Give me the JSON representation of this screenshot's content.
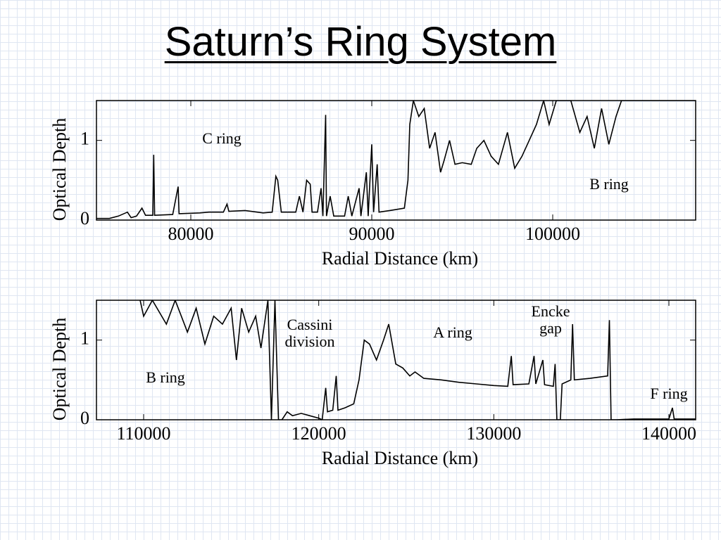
{
  "title": "Saturn’s Ring System",
  "chart_data": [
    {
      "type": "line",
      "xlabel": "Radial Distance (km)",
      "ylabel": "Optical Depth",
      "xlim": [
        74786,
        107899
      ],
      "ylim": [
        0,
        1.5
      ],
      "xticks": [
        80000,
        90000,
        100000
      ],
      "yticks": [
        0,
        1
      ],
      "color": "#000000",
      "annotations": [
        "C ring",
        "B ring"
      ],
      "x": [
        74800,
        75500,
        76000,
        76500,
        76700,
        77000,
        77300,
        77500,
        77900,
        77950,
        78000,
        79000,
        79300,
        79350,
        80500,
        81000,
        81800,
        82000,
        82100,
        83000,
        84000,
        84500,
        84700,
        84800,
        85000,
        85800,
        86000,
        86200,
        86400,
        86600,
        86700,
        87000,
        87200,
        87300,
        87450,
        87500,
        87700,
        87900,
        88500,
        88700,
        88900,
        89300,
        89400,
        89700,
        89800,
        90000,
        90100,
        90300,
        90400,
        91000,
        91800,
        92000,
        92100,
        92300,
        92600,
        92900,
        93200,
        93500,
        93800,
        94000,
        94300,
        94600,
        95000,
        95500,
        95800,
        96200,
        96600,
        97000,
        97500,
        97900,
        98300,
        98700,
        99100,
        99500,
        99800,
        100200,
        101000,
        101500,
        101900,
        102300,
        102700,
        103100,
        103500,
        103800,
        104500,
        107899
      ],
      "values": [
        0.02,
        0.02,
        0.05,
        0.1,
        0.03,
        0.05,
        0.15,
        0.06,
        0.06,
        0.82,
        0.06,
        0.07,
        0.42,
        0.08,
        0.09,
        0.1,
        0.1,
        0.2,
        0.11,
        0.12,
        0.09,
        0.1,
        0.55,
        0.5,
        0.1,
        0.1,
        0.3,
        0.1,
        0.5,
        0.45,
        0.1,
        0.1,
        0.4,
        0.05,
        1.32,
        0.05,
        0.3,
        0.05,
        0.05,
        0.3,
        0.05,
        0.4,
        0.05,
        0.6,
        0.05,
        0.95,
        0.1,
        0.7,
        0.1,
        0.12,
        0.15,
        0.5,
        1.2,
        1.5,
        1.3,
        1.4,
        0.9,
        1.1,
        0.6,
        0.75,
        1.0,
        0.7,
        0.72,
        0.7,
        0.9,
        1.0,
        0.8,
        0.7,
        1.1,
        0.65,
        0.8,
        1.0,
        1.2,
        1.5,
        1.2,
        1.5,
        1.5,
        1.1,
        1.3,
        0.9,
        1.4,
        0.95,
        1.3,
        1.5,
        1.5,
        1.5
      ]
    },
    {
      "type": "line",
      "xlabel": "Radial Distance (km)",
      "ylabel": "Optical Depth",
      "xlim": [
        107306,
        141528
      ],
      "ylim": [
        0,
        1.5
      ],
      "xticks": [
        110000,
        120000,
        130000,
        140000
      ],
      "yticks": [
        0,
        1
      ],
      "color": "#000000",
      "annotations": [
        "B ring",
        "Cassini division",
        "A ring",
        "Encke gap",
        "F ring"
      ],
      "x": [
        109800,
        110000,
        110500,
        111300,
        111800,
        112500,
        113000,
        113500,
        114000,
        114500,
        115000,
        115300,
        115600,
        116000,
        116400,
        116700,
        117100,
        117300,
        117500,
        117700,
        117900,
        118200,
        118500,
        119000,
        119500,
        120000,
        120200,
        120400,
        120500,
        120800,
        121000,
        121100,
        121500,
        122000,
        122300,
        122600,
        122900,
        123300,
        123700,
        124000,
        124400,
        124800,
        125200,
        125500,
        126000,
        127000,
        128000,
        129000,
        130000,
        130800,
        131000,
        131100,
        132000,
        132300,
        132400,
        132800,
        132900,
        133400,
        133500,
        133600,
        133800,
        133900,
        134400,
        134500,
        134600,
        135500,
        136500,
        136600,
        136700,
        137000,
        138000,
        140000,
        140200,
        140300,
        141528
      ],
      "values": [
        1.5,
        1.3,
        1.5,
        1.2,
        1.5,
        1.1,
        1.4,
        0.95,
        1.3,
        1.2,
        1.4,
        0.75,
        1.4,
        1.1,
        1.3,
        0.9,
        1.5,
        0.0,
        1.5,
        0.0,
        0.0,
        0.1,
        0.05,
        0.08,
        0.05,
        0.02,
        0.0,
        0.4,
        0.1,
        0.12,
        0.55,
        0.12,
        0.15,
        0.2,
        0.5,
        1.0,
        0.95,
        0.75,
        1.0,
        1.2,
        0.7,
        0.65,
        0.55,
        0.6,
        0.52,
        0.5,
        0.47,
        0.45,
        0.43,
        0.42,
        0.8,
        0.44,
        0.45,
        0.8,
        0.45,
        0.75,
        0.44,
        0.42,
        0.7,
        0.0,
        0.0,
        0.45,
        0.5,
        1.2,
        0.5,
        0.52,
        0.55,
        1.25,
        0.0,
        0.0,
        0.01,
        0.01,
        0.15,
        0.01,
        0.01
      ]
    }
  ]
}
